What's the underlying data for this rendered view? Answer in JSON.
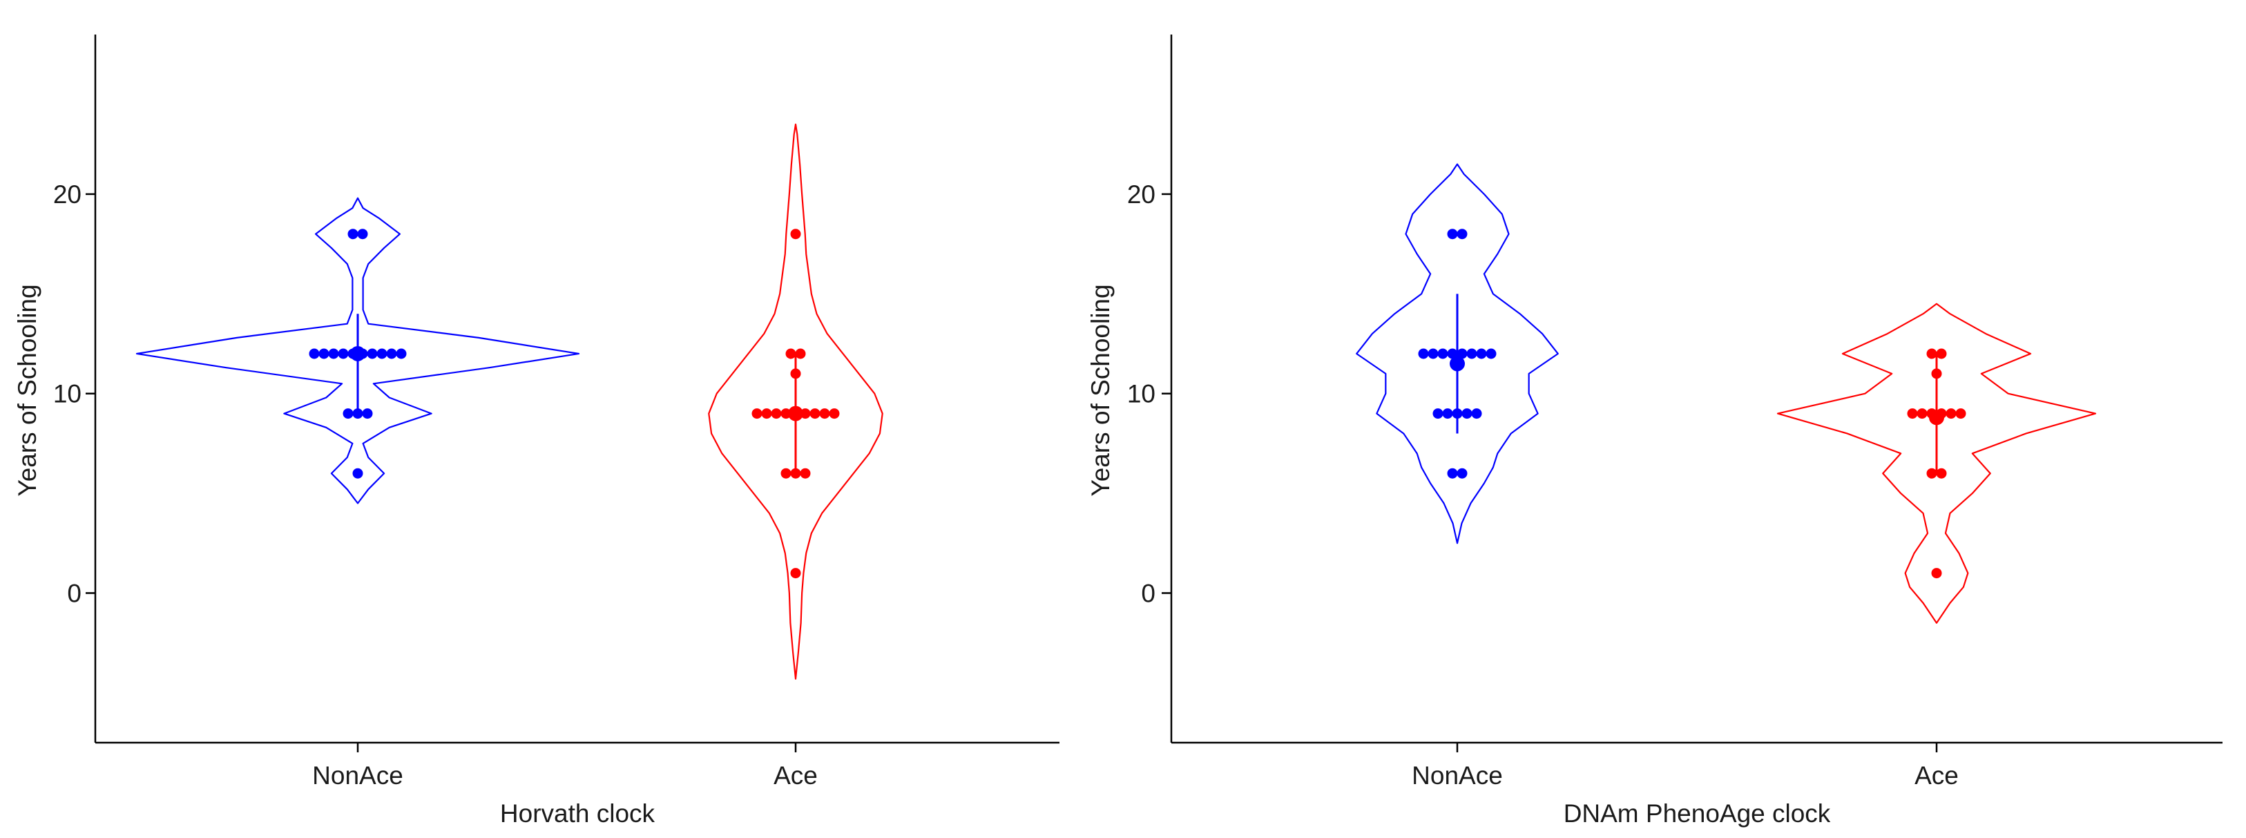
{
  "chart_data": [
    {
      "type": "violin",
      "title": "",
      "xlabel": "Horvath clock",
      "ylabel": "Years of Schooling",
      "ylim": [
        -7.5,
        28
      ],
      "yticks": [
        0,
        10,
        20
      ],
      "categories": [
        "NonAce",
        "Ace"
      ],
      "series": [
        {
          "name": "NonAce",
          "color": "#0000ff",
          "values": [
            18,
            18,
            12,
            12,
            12,
            12,
            12,
            12,
            12,
            12,
            12,
            12,
            9,
            9,
            9,
            6
          ],
          "mean": 12,
          "error_bar": [
            9,
            14
          ],
          "density_range": [
            4.5,
            19.8
          ],
          "density": [
            [
              4.5,
              0.0
            ],
            [
              5.2,
              0.02
            ],
            [
              6.0,
              0.05
            ],
            [
              6.8,
              0.02
            ],
            [
              7.5,
              0.01
            ],
            [
              8.3,
              0.06
            ],
            [
              9.0,
              0.14
            ],
            [
              9.8,
              0.06
            ],
            [
              10.5,
              0.03
            ],
            [
              11.3,
              0.25
            ],
            [
              12.0,
              0.42
            ],
            [
              12.8,
              0.23
            ],
            [
              13.5,
              0.02
            ],
            [
              14.2,
              0.01
            ],
            [
              15.0,
              0.01
            ],
            [
              15.8,
              0.01
            ],
            [
              16.5,
              0.02
            ],
            [
              17.3,
              0.05
            ],
            [
              18.0,
              0.08
            ],
            [
              18.8,
              0.04
            ],
            [
              19.3,
              0.01
            ],
            [
              19.8,
              0.0
            ]
          ]
        },
        {
          "name": "Ace",
          "color": "#ff0000",
          "values": [
            18,
            12,
            12,
            11,
            9,
            9,
            9,
            9,
            9,
            9,
            9,
            9,
            9,
            6,
            6,
            6,
            1
          ],
          "mean": 9,
          "error_bar": [
            6,
            12
          ],
          "density_range": [
            -4.3,
            23.5
          ],
          "density": [
            [
              -4.3,
              0.0
            ],
            [
              -3.0,
              0.005
            ],
            [
              -1.5,
              0.01
            ],
            [
              0.0,
              0.012
            ],
            [
              1.0,
              0.015
            ],
            [
              2.0,
              0.02
            ],
            [
              3.0,
              0.03
            ],
            [
              4.0,
              0.05
            ],
            [
              5.0,
              0.08
            ],
            [
              6.0,
              0.11
            ],
            [
              7.0,
              0.14
            ],
            [
              8.0,
              0.16
            ],
            [
              9.0,
              0.165
            ],
            [
              10.0,
              0.15
            ],
            [
              11.0,
              0.12
            ],
            [
              12.0,
              0.09
            ],
            [
              13.0,
              0.06
            ],
            [
              14.0,
              0.04
            ],
            [
              15.0,
              0.03
            ],
            [
              16.0,
              0.025
            ],
            [
              17.0,
              0.02
            ],
            [
              18.0,
              0.018
            ],
            [
              19.0,
              0.015
            ],
            [
              20.0,
              0.012
            ],
            [
              21.5,
              0.008
            ],
            [
              23.0,
              0.003
            ],
            [
              23.5,
              0.0
            ]
          ]
        }
      ]
    },
    {
      "type": "violin",
      "title": "",
      "xlabel": "DNAm PhenoAge clock",
      "ylabel": "Years of Schooling",
      "ylim": [
        -7.5,
        28
      ],
      "yticks": [
        0,
        10,
        20
      ],
      "categories": [
        "NonAce",
        "Ace"
      ],
      "series": [
        {
          "name": "NonAce",
          "color": "#0000ff",
          "values": [
            18,
            18,
            12,
            12,
            12,
            12,
            12,
            12,
            12,
            12,
            9,
            9,
            9,
            9,
            9,
            6,
            6
          ],
          "mean": 11.5,
          "error_bar": [
            8,
            15
          ],
          "density_range": [
            2.5,
            21.5
          ],
          "density": [
            [
              2.5,
              0.0
            ],
            [
              3.5,
              0.01
            ],
            [
              4.5,
              0.03
            ],
            [
              5.5,
              0.06
            ],
            [
              6.3,
              0.08
            ],
            [
              7.0,
              0.09
            ],
            [
              8.0,
              0.12
            ],
            [
              9.0,
              0.18
            ],
            [
              10.0,
              0.16
            ],
            [
              11.0,
              0.16
            ],
            [
              12.0,
              0.225
            ],
            [
              13.0,
              0.19
            ],
            [
              14.0,
              0.14
            ],
            [
              15.0,
              0.08
            ],
            [
              16.0,
              0.06
            ],
            [
              17.0,
              0.09
            ],
            [
              18.0,
              0.115
            ],
            [
              19.0,
              0.1
            ],
            [
              20.0,
              0.06
            ],
            [
              21.0,
              0.015
            ],
            [
              21.5,
              0.0
            ]
          ]
        },
        {
          "name": "Ace",
          "color": "#ff0000",
          "values": [
            12,
            12,
            11,
            9,
            9,
            9,
            9,
            9,
            9,
            6,
            6,
            1
          ],
          "mean": 8.8,
          "error_bar": [
            6,
            12
          ],
          "density_range": [
            -1.5,
            14.5
          ],
          "density": [
            [
              -1.5,
              0.0
            ],
            [
              -0.5,
              0.03
            ],
            [
              0.3,
              0.06
            ],
            [
              1.0,
              0.07
            ],
            [
              2.0,
              0.05
            ],
            [
              3.0,
              0.02
            ],
            [
              4.0,
              0.03
            ],
            [
              5.0,
              0.08
            ],
            [
              6.0,
              0.12
            ],
            [
              7.0,
              0.08
            ],
            [
              8.0,
              0.2
            ],
            [
              9.0,
              0.355
            ],
            [
              10.0,
              0.16
            ],
            [
              11.0,
              0.1
            ],
            [
              12.0,
              0.21
            ],
            [
              13.0,
              0.11
            ],
            [
              14.0,
              0.03
            ],
            [
              14.5,
              0.0
            ]
          ]
        }
      ]
    }
  ]
}
